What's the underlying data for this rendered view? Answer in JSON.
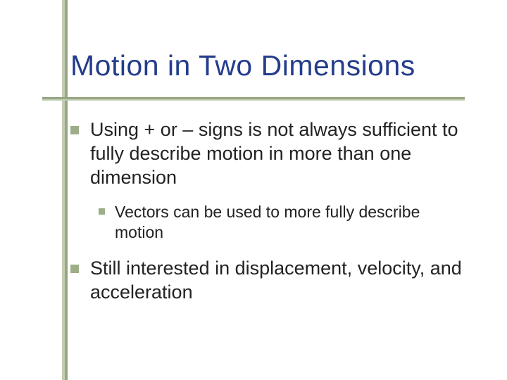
{
  "title": {
    "text": "Motion in Two Dimensions",
    "color": "#243d8b",
    "fontsize": 41
  },
  "accent": {
    "line_color": "#99a582",
    "line_shadow_color": "#c2cdb5",
    "underline_color": "#97a480"
  },
  "bullet_color": "#9dad87",
  "body_fontsize_l1": 27,
  "body_fontsize_l2": 23,
  "bullets": [
    {
      "level": 1,
      "text": "Using + or – signs is not always sufficient to fully describe motion in more than one dimension"
    },
    {
      "level": 2,
      "text": "Vectors can be used to more fully describe motion"
    },
    {
      "level": 1,
      "text": "Still interested in displacement, velocity, and acceleration"
    }
  ]
}
